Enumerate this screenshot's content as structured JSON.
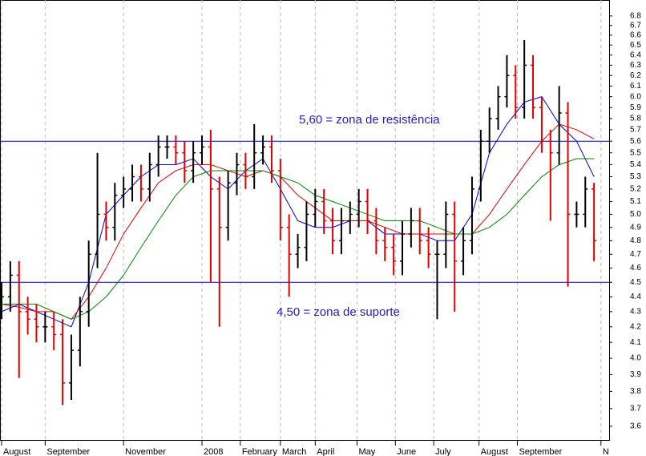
{
  "chart_data": {
    "type": "ohlc",
    "log_scale": true,
    "up_color": "#000000",
    "down_color": "#e00000",
    "grid": true,
    "xlim": [
      0,
      345
    ],
    "xticks": [
      {
        "value": 0,
        "label": "August"
      },
      {
        "value": 25,
        "label": "September"
      },
      {
        "value": 70,
        "label": "November"
      },
      {
        "value": 115,
        "label": "2008"
      },
      {
        "value": 137,
        "label": "February"
      },
      {
        "value": 160,
        "label": "March"
      },
      {
        "value": 180,
        "label": "April"
      },
      {
        "value": 204,
        "label": "May"
      },
      {
        "value": 226,
        "label": "June"
      },
      {
        "value": 248,
        "label": "July"
      },
      {
        "value": 274,
        "label": "August"
      },
      {
        "value": 296,
        "label": "September"
      },
      {
        "value": 344,
        "label": "N"
      }
    ],
    "ylim": [
      3.52,
      6.97
    ],
    "yticks": [
      3.6,
      3.7,
      3.8,
      3.9,
      {
        "value": 4,
        "label": "4.0"
      },
      4.1,
      4.2,
      4.3,
      4.4,
      4.5,
      4.6,
      4.7,
      4.8,
      4.9,
      {
        "value": 5,
        "label": "5.0"
      },
      5.1,
      5.2,
      5.3,
      5.4,
      5.5,
      5.6,
      5.7,
      5.8,
      5.9,
      {
        "value": 6,
        "label": "6.0"
      },
      6.1,
      6.2,
      6.3,
      6.4,
      6.5,
      6.6,
      6.7,
      6.8
    ],
    "x": [
      0,
      5,
      10,
      15,
      20,
      25,
      30,
      35,
      40,
      45,
      50,
      55,
      60,
      65,
      70,
      75,
      80,
      85,
      90,
      95,
      100,
      105,
      110,
      115,
      120,
      125,
      130,
      135,
      140,
      145,
      150,
      155,
      160,
      165,
      170,
      175,
      180,
      185,
      190,
      195,
      200,
      205,
      210,
      215,
      220,
      225,
      230,
      235,
      240,
      245,
      250,
      255,
      260,
      265,
      270,
      275,
      280,
      285,
      290,
      295,
      300,
      305,
      310,
      315,
      320,
      325,
      330,
      335,
      340
    ],
    "open": [
      4.35,
      4.4,
      4.55,
      4.3,
      4.25,
      4.2,
      4.2,
      4.15,
      3.85,
      4.05,
      4.3,
      4.7,
      5.0,
      4.9,
      5.15,
      5.2,
      5.3,
      5.2,
      5.4,
      5.55,
      5.55,
      5.5,
      5.35,
      5.5,
      5.55,
      5.2,
      4.9,
      5.25,
      5.4,
      5.3,
      5.5,
      5.55,
      5.35,
      4.9,
      4.7,
      4.75,
      5.0,
      5.1,
      4.95,
      4.8,
      4.95,
      5.0,
      5.1,
      4.95,
      4.8,
      4.75,
      4.65,
      4.85,
      4.95,
      4.8,
      4.7,
      4.7,
      5.0,
      4.65,
      4.8,
      5.2,
      5.6,
      5.8,
      6.0,
      6.2,
      5.9,
      6.3,
      5.9,
      5.6,
      5.5,
      5.85,
      5.0,
      5.0,
      5.2
    ],
    "high": [
      4.5,
      4.65,
      4.65,
      4.4,
      4.35,
      4.3,
      4.3,
      4.25,
      4.15,
      4.4,
      4.8,
      5.5,
      5.1,
      5.25,
      5.3,
      5.4,
      5.4,
      5.5,
      5.65,
      5.65,
      5.65,
      5.6,
      5.6,
      5.65,
      5.7,
      5.3,
      5.35,
      5.5,
      5.5,
      5.75,
      5.65,
      5.65,
      5.45,
      5.0,
      4.85,
      5.1,
      5.2,
      5.2,
      5.05,
      5.05,
      5.1,
      5.2,
      5.2,
      5.05,
      4.9,
      4.85,
      4.95,
      5.05,
      5.05,
      4.9,
      4.8,
      5.1,
      5.1,
      4.9,
      5.3,
      5.7,
      5.9,
      6.1,
      6.4,
      6.3,
      6.55,
      6.4,
      6.0,
      5.7,
      6.1,
      5.95,
      5.1,
      5.3,
      5.25
    ],
    "low": [
      4.25,
      4.3,
      3.88,
      4.15,
      4.1,
      4.1,
      4.05,
      3.72,
      3.75,
      3.95,
      4.2,
      4.6,
      4.8,
      4.8,
      5.05,
      5.1,
      5.1,
      5.1,
      5.3,
      5.45,
      5.4,
      5.25,
      5.25,
      5.4,
      4.5,
      4.2,
      4.8,
      5.15,
      5.2,
      5.2,
      5.4,
      5.25,
      4.8,
      4.4,
      4.6,
      4.65,
      4.9,
      4.85,
      4.7,
      4.7,
      4.85,
      4.9,
      4.85,
      4.7,
      4.65,
      4.55,
      4.55,
      4.75,
      4.7,
      4.6,
      4.25,
      4.6,
      4.3,
      4.55,
      4.7,
      5.1,
      5.5,
      5.7,
      5.9,
      5.8,
      5.8,
      5.8,
      5.5,
      4.95,
      5.4,
      4.47,
      4.9,
      4.9,
      4.65
    ],
    "close": [
      4.4,
      4.55,
      4.3,
      4.25,
      4.2,
      4.2,
      4.15,
      3.85,
      4.05,
      4.3,
      4.7,
      5.0,
      4.9,
      5.15,
      5.2,
      5.3,
      5.2,
      5.4,
      5.55,
      5.55,
      5.5,
      5.35,
      5.5,
      5.55,
      5.2,
      4.9,
      5.25,
      5.4,
      5.3,
      5.5,
      5.55,
      5.35,
      4.9,
      4.7,
      4.75,
      5.0,
      5.1,
      4.95,
      4.8,
      4.95,
      5.0,
      5.1,
      4.95,
      4.8,
      4.75,
      4.65,
      4.85,
      4.95,
      4.8,
      4.7,
      4.7,
      5.0,
      4.65,
      4.8,
      5.2,
      5.6,
      5.8,
      6.0,
      6.2,
      5.9,
      6.3,
      5.9,
      5.6,
      5.5,
      5.85,
      5.0,
      5.0,
      5.2,
      4.8
    ],
    "moving_averages": {
      "x": [
        0,
        10,
        20,
        30,
        40,
        50,
        60,
        70,
        80,
        90,
        100,
        110,
        120,
        130,
        140,
        150,
        160,
        170,
        180,
        190,
        200,
        210,
        220,
        230,
        240,
        250,
        260,
        270,
        280,
        290,
        300,
        310,
        320,
        330,
        340
      ],
      "series": [
        {
          "color": "#0000dd",
          "values": [
            4.3,
            4.35,
            4.3,
            4.25,
            4.2,
            4.5,
            5.0,
            5.15,
            5.3,
            5.4,
            5.4,
            5.45,
            5.3,
            5.2,
            5.35,
            5.45,
            5.2,
            4.95,
            4.9,
            4.9,
            4.95,
            4.95,
            4.85,
            4.85,
            4.85,
            4.8,
            4.8,
            5.0,
            5.5,
            5.75,
            5.95,
            6.0,
            5.75,
            5.6,
            5.3
          ]
        },
        {
          "color": "#dd0000",
          "values": [
            4.35,
            4.33,
            4.3,
            4.3,
            4.25,
            4.4,
            4.6,
            4.85,
            5.05,
            5.25,
            5.35,
            5.4,
            5.4,
            5.35,
            5.3,
            5.35,
            5.3,
            5.15,
            5.05,
            4.95,
            4.95,
            4.95,
            4.9,
            4.85,
            4.85,
            4.85,
            4.85,
            4.85,
            5.0,
            5.2,
            5.4,
            5.6,
            5.75,
            5.7,
            5.62
          ]
        },
        {
          "color": "#008800",
          "values": [
            4.35,
            4.35,
            4.35,
            4.3,
            4.25,
            4.3,
            4.4,
            4.55,
            4.75,
            4.95,
            5.15,
            5.3,
            5.35,
            5.35,
            5.35,
            5.35,
            5.3,
            5.25,
            5.15,
            5.1,
            5.05,
            5.0,
            4.95,
            4.95,
            4.95,
            4.9,
            4.85,
            4.85,
            4.9,
            5.0,
            5.15,
            5.3,
            5.4,
            5.45,
            5.45
          ]
        }
      ]
    },
    "reference_lines": [
      {
        "value": 5.6,
        "label": "5,60 = zona de resistência",
        "color": "#0000cc"
      },
      {
        "value": 4.5,
        "label": "4,50 = zona de suporte",
        "color": "#0000cc"
      }
    ]
  }
}
